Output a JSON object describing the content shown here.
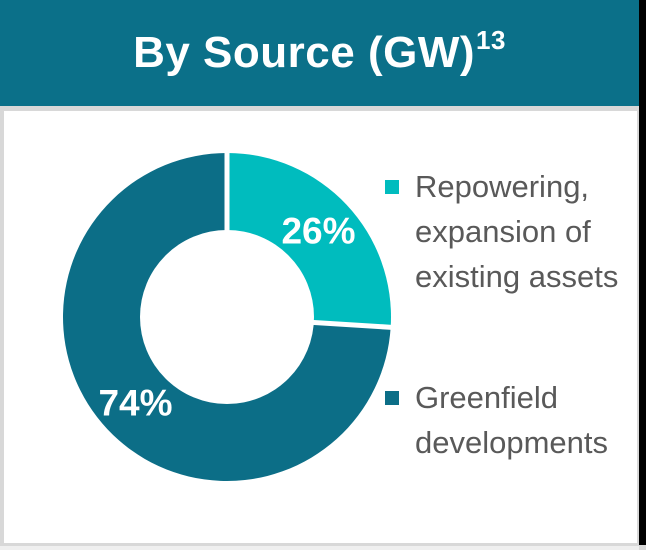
{
  "header": {
    "title": "By Source (GW)",
    "footnote_marker": "13",
    "background_color": "#0B7089",
    "text_color": "#FFFFFF"
  },
  "chart_data": {
    "type": "pie",
    "subtype": "donut",
    "title": "By Source (GW)",
    "start_angle_deg": 0,
    "direction": "clockwise",
    "legend_position": "right",
    "slice_label_color": "#FFFFFF",
    "separator_color": "#FFFFFF",
    "series": [
      {
        "name": "Repowering, expansion of existing assets",
        "value": 26,
        "display": "26%",
        "color": "#00BCBE"
      },
      {
        "name": "Greenfield developments",
        "value": 74,
        "display": "74%",
        "color": "#0C6E87"
      }
    ]
  },
  "legend": {
    "text_color": "#595959"
  }
}
